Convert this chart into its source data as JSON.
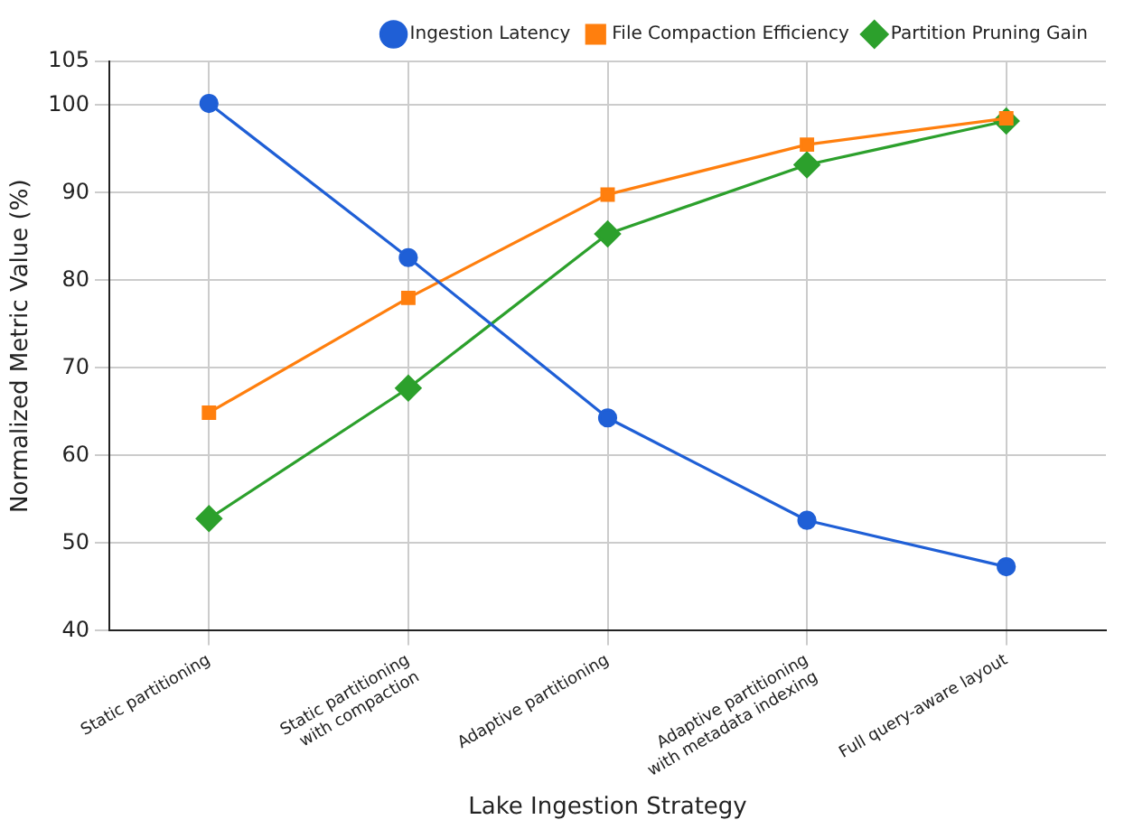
{
  "chart_data": {
    "type": "line",
    "xlabel": "Lake Ingestion Strategy",
    "ylabel": "Normalized Metric Value (%)",
    "categories": [
      "Static partitioning",
      "Static partitioning\nwith compaction",
      "Adaptive partitioning",
      "Adaptive partitioning\nwith metadata indexing",
      "Full query-aware layout"
    ],
    "series": [
      {
        "name": "Ingestion Latency",
        "color": "#1f5fd6",
        "marker": "circle",
        "values": [
          100.2,
          82.6,
          64.3,
          52.6,
          47.3
        ]
      },
      {
        "name": "File Compaction Efficiency",
        "color": "#ff7f0e",
        "marker": "square",
        "values": [
          64.9,
          78.0,
          89.8,
          95.5,
          98.5
        ]
      },
      {
        "name": "Partition Pruning Gain",
        "color": "#2ca02c",
        "marker": "diamond",
        "values": [
          52.8,
          67.7,
          85.3,
          93.2,
          98.2
        ]
      }
    ],
    "ylim": [
      40,
      105
    ],
    "yticks": [
      40,
      50,
      60,
      70,
      80,
      90,
      100,
      105
    ],
    "grid": true,
    "legend": "top right",
    "line_style": "solid"
  }
}
